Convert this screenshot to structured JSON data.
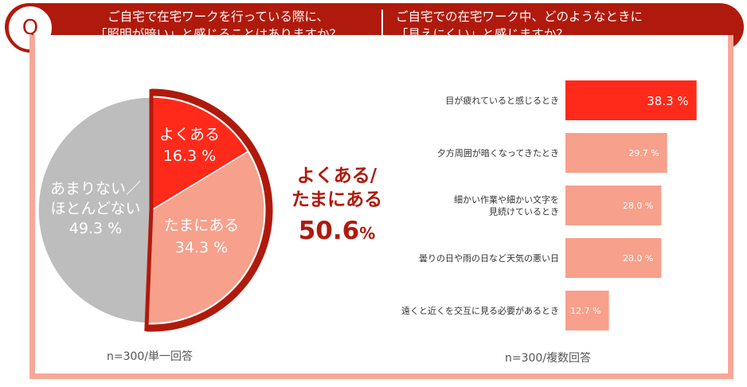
{
  "header": {
    "badge": "Q",
    "question1_line1": "ご自宅で在宅ワークを行っている際に、",
    "question1_line2": "「照明が暗い」と感じることはありますか？",
    "question2_line1": "ご自宅での在宅ワーク中、どのようなときに",
    "question2_line2": "「見えにくい」と感じますか？"
  },
  "highlight": {
    "line1": "よくある/",
    "line2": "たまにある",
    "value": "50.6",
    "unit": "%"
  },
  "notes": {
    "left": "n=300/単一回答",
    "right": "n=300/複数回答"
  },
  "colors": {
    "accent": "#b01a0c",
    "red": "#ff2a1a",
    "salmon": "#f7a08c",
    "gray": "#bdbdbd"
  },
  "chart_data": [
    {
      "type": "pie",
      "slices": [
        {
          "label": "よくある",
          "value": 16.3,
          "value_label": "16.3 %",
          "color": "#ff2a1a"
        },
        {
          "label": "たまにある",
          "value": 34.3,
          "value_label": "34.3 %",
          "color": "#f7a08c"
        },
        {
          "label": "あまりない／ほとんどない",
          "value": 49.3,
          "value_label": "49.3 %",
          "color": "#bdbdbd"
        }
      ],
      "start": "12 o'clock",
      "direction": "clockwise"
    },
    {
      "type": "bar",
      "orientation": "horizontal",
      "categories": [
        "目が疲れていると感じるとき",
        "夕方周囲が暗くなってきたとき",
        "細かい作業や細かい文字を|見続けているとき",
        "曇りの日や雨の日など天気の悪い日",
        "遠くと近くを交互に見る必要があるとき"
      ],
      "values": [
        38.3,
        29.7,
        28.0,
        28.0,
        12.7
      ],
      "value_labels": [
        "38.3 %",
        "29.7 %",
        "28.0 %",
        "28.0 %",
        "12.7 %"
      ],
      "colors": [
        "#ff2a1a",
        "#f7a08c",
        "#f7a08c",
        "#f7a08c",
        "#f7a08c"
      ],
      "xlim": [
        0,
        40
      ]
    }
  ]
}
